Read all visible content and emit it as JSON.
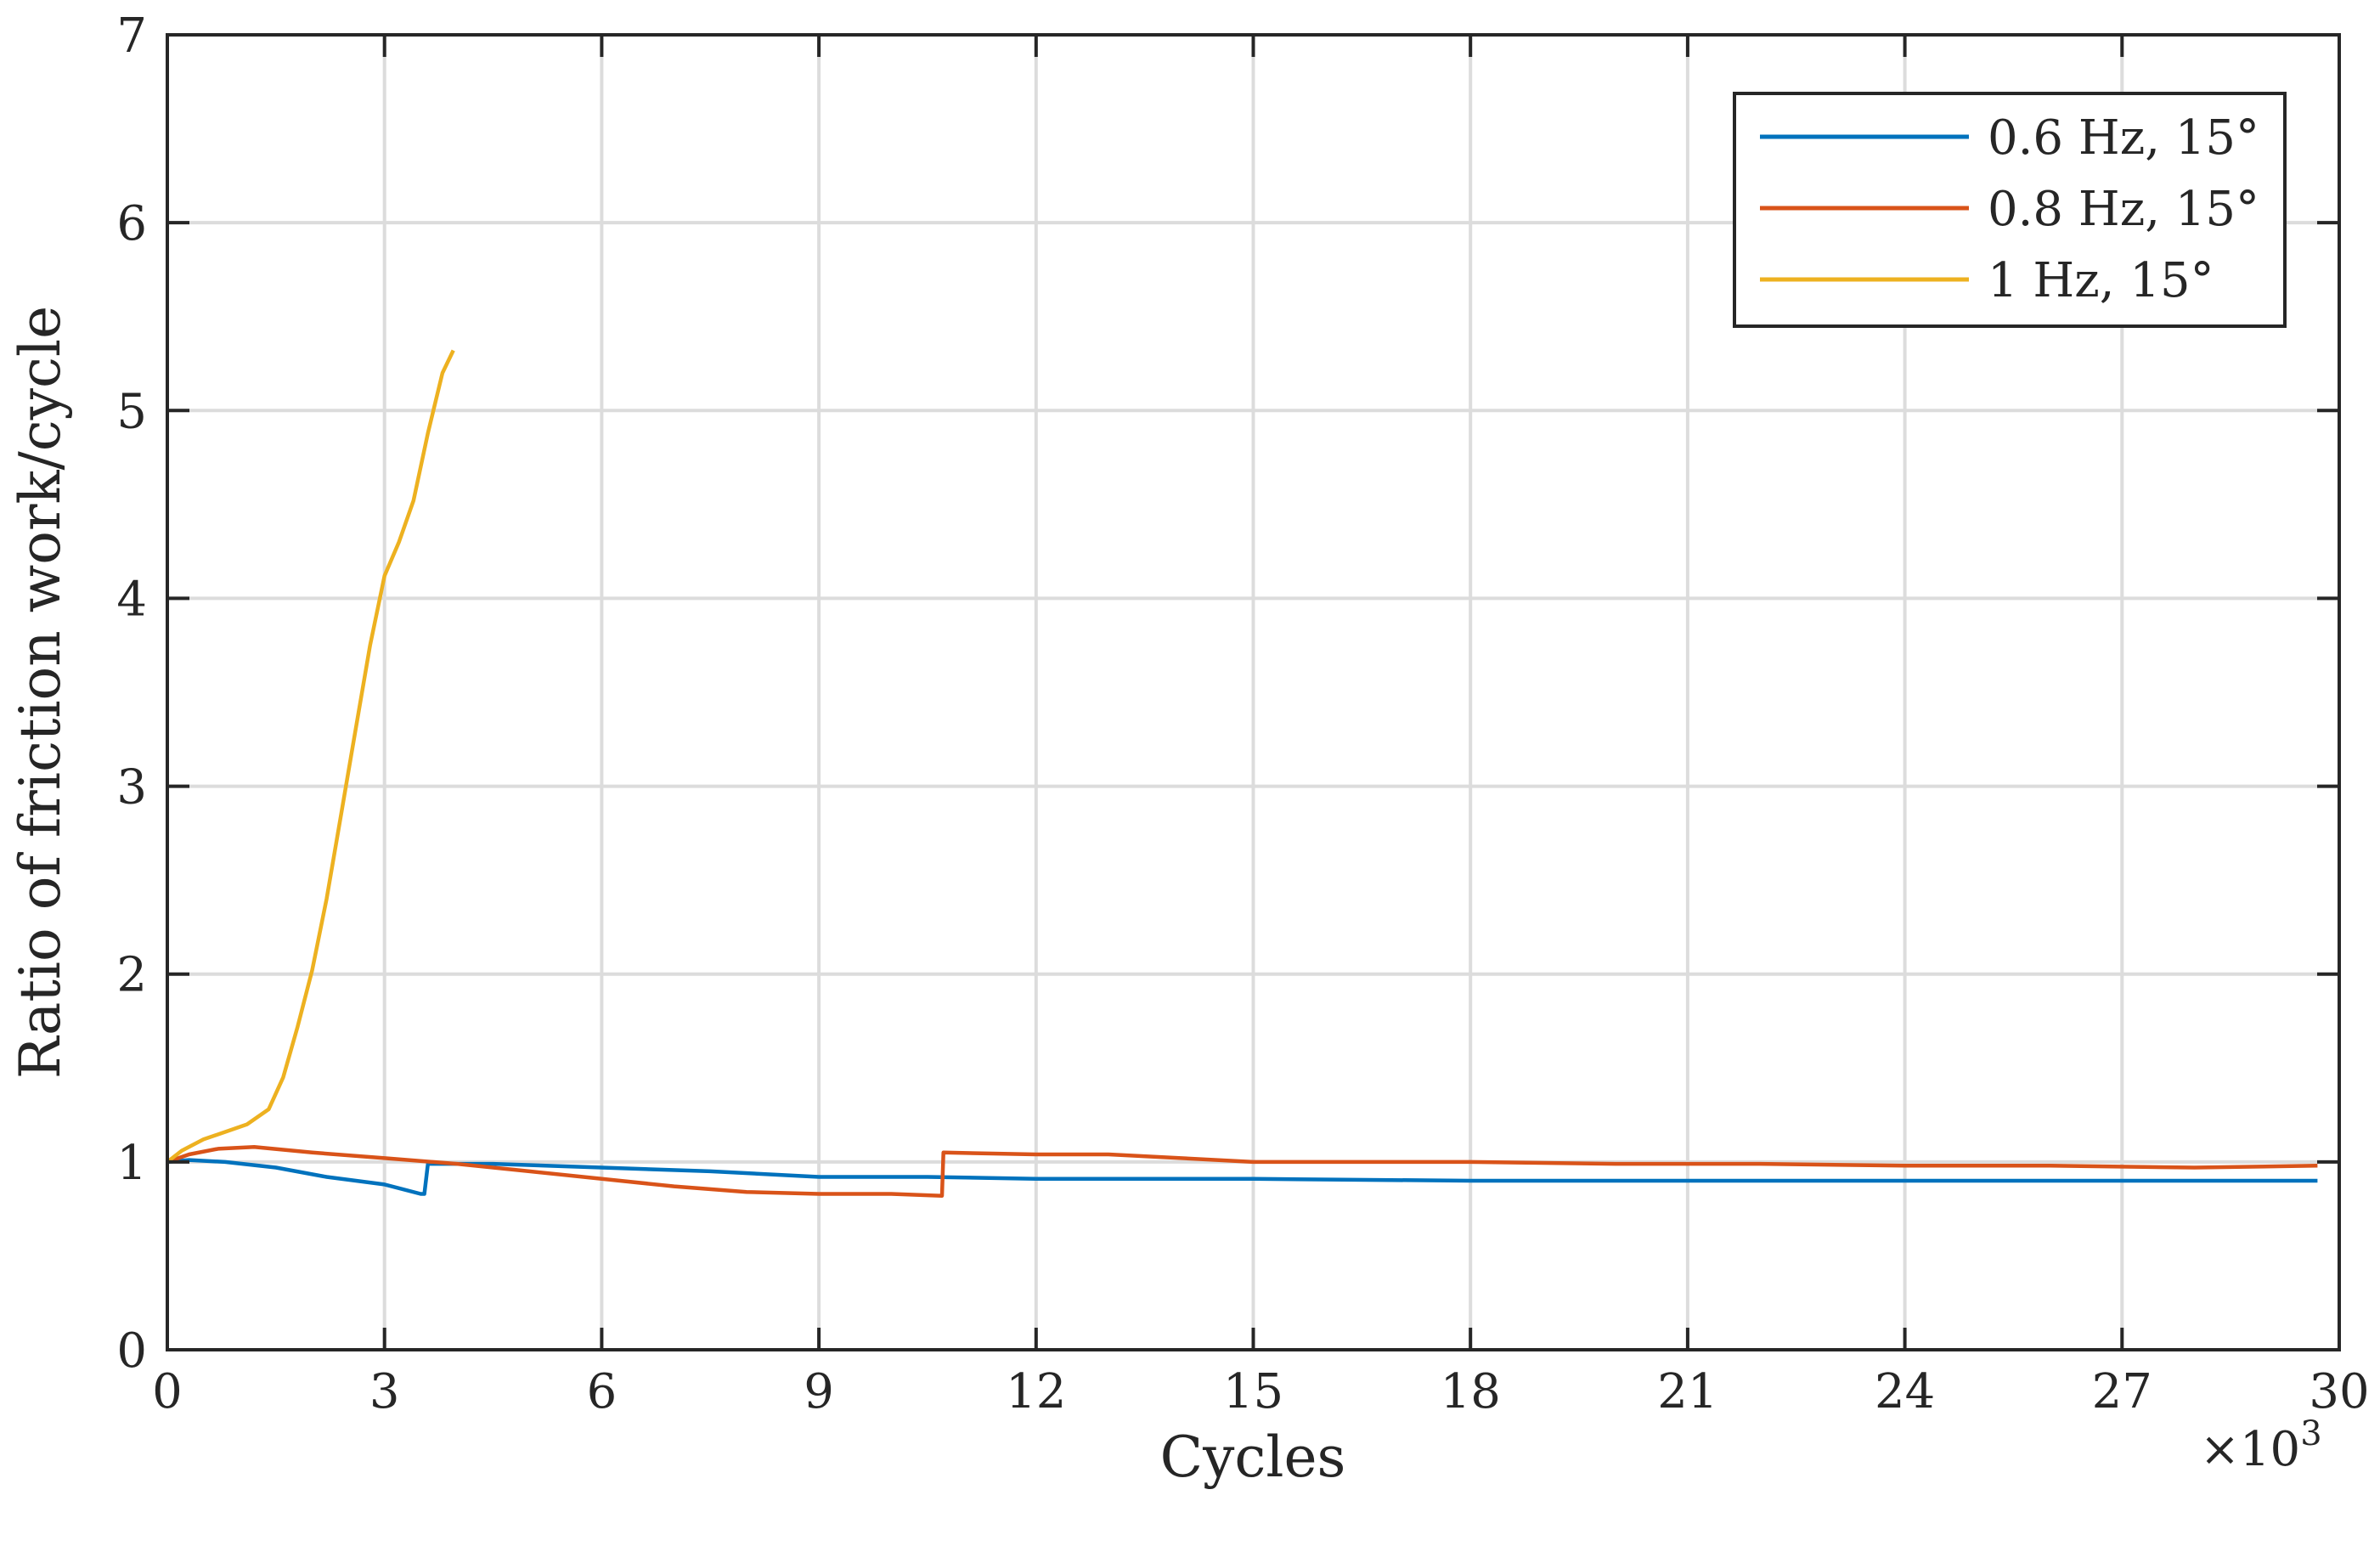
{
  "chart_data": {
    "type": "line",
    "title": "",
    "xlabel": "Cycles",
    "ylabel": "Ratio of friction work/cycle",
    "x_multiplier_base": "×10",
    "x_multiplier_exp": "3",
    "xlim": [
      0,
      30
    ],
    "ylim": [
      0,
      7
    ],
    "xticks": [
      0,
      3,
      6,
      9,
      12,
      15,
      18,
      21,
      24,
      27,
      30
    ],
    "yticks": [
      0,
      1,
      2,
      3,
      4,
      5,
      6,
      7
    ],
    "xtick_labels": [
      "0",
      "3",
      "6",
      "9",
      "12",
      "15",
      "18",
      "21",
      "24",
      "27",
      "30"
    ],
    "ytick_labels": [
      "0",
      "1",
      "2",
      "3",
      "4",
      "5",
      "6",
      "7"
    ],
    "grid": true,
    "legend_position": "top-right",
    "series": [
      {
        "name": "0.6 Hz, 15°",
        "color": "#0072BD",
        "x": [
          0,
          0.3,
          0.8,
          1.5,
          2.2,
          3.0,
          3.5,
          3.55,
          3.6,
          4.5,
          6,
          7.5,
          9,
          10.5,
          12,
          15,
          18,
          21,
          24,
          27,
          29.7
        ],
        "y": [
          1.0,
          1.01,
          1.0,
          0.97,
          0.92,
          0.88,
          0.83,
          0.83,
          0.99,
          0.99,
          0.97,
          0.95,
          0.92,
          0.92,
          0.91,
          0.91,
          0.9,
          0.9,
          0.9,
          0.9,
          0.9
        ]
      },
      {
        "name": "0.8 Hz, 15°",
        "color": "#D95319",
        "x": [
          0,
          0.3,
          0.7,
          1.2,
          2.0,
          3.0,
          4.0,
          5.0,
          6.0,
          7.0,
          8.0,
          9.0,
          10.0,
          10.7,
          10.72,
          12,
          13,
          14,
          15,
          16,
          18,
          20,
          22,
          24,
          26,
          28,
          29.7
        ],
        "y": [
          1.0,
          1.04,
          1.07,
          1.08,
          1.05,
          1.02,
          0.99,
          0.95,
          0.91,
          0.87,
          0.84,
          0.83,
          0.83,
          0.82,
          1.05,
          1.04,
          1.04,
          1.02,
          1.0,
          1.0,
          1.0,
          0.99,
          0.99,
          0.98,
          0.98,
          0.97,
          0.98
        ]
      },
      {
        "name": "1 Hz, 15°",
        "color": "#EDB120",
        "x": [
          0,
          0.2,
          0.5,
          0.8,
          1.1,
          1.4,
          1.6,
          1.8,
          2.0,
          2.2,
          2.4,
          2.6,
          2.8,
          3.0,
          3.2,
          3.4,
          3.6,
          3.8,
          3.95
        ],
        "y": [
          1.0,
          1.06,
          1.12,
          1.16,
          1.2,
          1.28,
          1.45,
          1.72,
          2.02,
          2.4,
          2.85,
          3.3,
          3.75,
          4.12,
          4.3,
          4.52,
          4.88,
          5.2,
          5.32
        ]
      }
    ]
  }
}
